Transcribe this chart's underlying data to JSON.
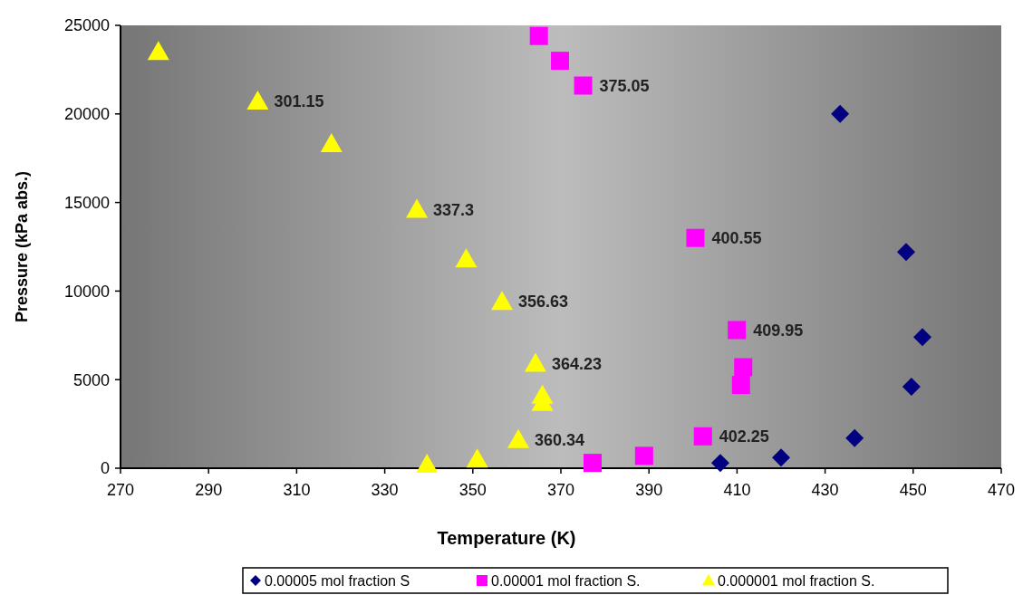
{
  "chart_data": {
    "type": "scatter",
    "xlabel": "Temperature (K)",
    "ylabel": "Pressure (kPa abs.)",
    "xlim": [
      270,
      470
    ],
    "xticks": [
      270,
      290,
      310,
      330,
      350,
      370,
      390,
      410,
      430,
      450,
      470
    ],
    "ylim": [
      0,
      25000
    ],
    "yticks": [
      0,
      5000,
      10000,
      15000,
      20000,
      25000
    ],
    "grid": false,
    "legend": "bottom",
    "series": [
      {
        "name": "0.00005 mol fraction S",
        "color": "#000080",
        "marker": "diamond",
        "x": [
          433.4,
          448.4,
          452.1,
          449.6,
          436.7,
          420.0,
          406.2
        ],
        "values": [
          20000,
          12200,
          7400,
          4600,
          1700,
          600,
          300
        ]
      },
      {
        "name": "0.00001 mol fraction S.",
        "color": "#ff00ff",
        "marker": "square",
        "x": [
          365.0,
          369.8,
          375.05,
          400.55,
          409.95,
          411.4,
          410.9,
          402.25,
          388.9,
          377.2
        ],
        "values": [
          24400,
          23000,
          21600,
          13000,
          7800,
          5700,
          4700,
          1800,
          700,
          300
        ]
      },
      {
        "name": "0.000001 mol fraction S.",
        "color": "#ffff00",
        "marker": "triangle",
        "x": [
          278.6,
          301.15,
          317.9,
          337.3,
          348.5,
          356.63,
          364.23,
          365.8,
          365.8,
          360.34,
          351.0,
          339.6
        ],
        "values": [
          23500,
          20700,
          18300,
          14600,
          11800,
          9400,
          5900,
          4100,
          3700,
          1600,
          500,
          200
        ]
      }
    ],
    "annotations": [
      {
        "text": "301.15",
        "x": 301.15,
        "y": 20700
      },
      {
        "text": "337.3",
        "x": 337.3,
        "y": 14600
      },
      {
        "text": "356.63",
        "x": 356.63,
        "y": 9400
      },
      {
        "text": "364.23",
        "x": 364.23,
        "y": 5900
      },
      {
        "text": "360.34",
        "x": 360.34,
        "y": 1600
      },
      {
        "text": "375.05",
        "x": 375.05,
        "y": 21600
      },
      {
        "text": "400.55",
        "x": 400.55,
        "y": 13000
      },
      {
        "text": "409.95",
        "x": 409.95,
        "y": 7800
      },
      {
        "text": "402.25",
        "x": 402.25,
        "y": 1800
      }
    ]
  }
}
